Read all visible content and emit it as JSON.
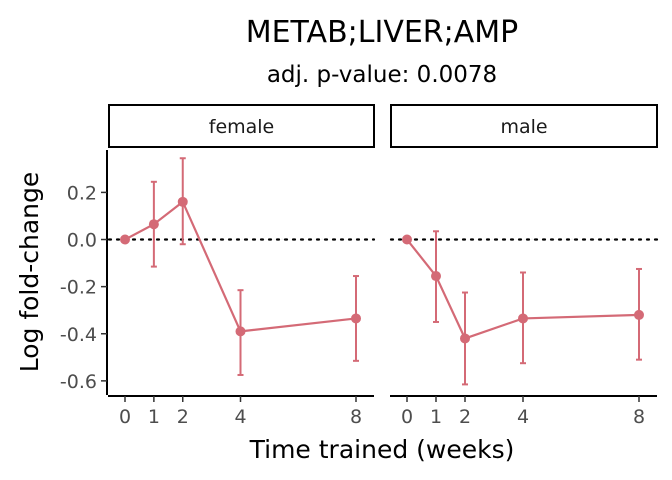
{
  "chart_data": {
    "type": "line",
    "title": "METAB;LIVER;AMP",
    "subtitle": "adj. p-value: 0.0078",
    "xlabel": "Time trained (weeks)",
    "ylabel": "Log fold-change",
    "x_ticks": [
      0,
      1,
      2,
      4,
      8
    ],
    "x_tick_labels": [
      "0",
      "1",
      "2",
      "4",
      "8"
    ],
    "y_ticks": [
      0.2,
      0.0,
      -0.2,
      -0.4,
      -0.6
    ],
    "y_tick_labels": [
      "0.2",
      "0.0",
      "-0.2",
      "-0.4",
      "-0.6"
    ],
    "xlim": [
      -0.4,
      8.4
    ],
    "ylim": [
      -0.66,
      0.38
    ],
    "grid": false,
    "reference_line": 0,
    "series_color": "#d46a76",
    "panels": [
      {
        "name": "female",
        "x": [
          0,
          1,
          2,
          4,
          8
        ],
        "y": [
          0.0,
          0.065,
          0.16,
          -0.39,
          -0.335
        ],
        "err_low": [
          0.0,
          -0.115,
          -0.02,
          -0.575,
          -0.515
        ],
        "err_high": [
          0.0,
          0.245,
          0.345,
          -0.215,
          -0.155
        ]
      },
      {
        "name": "male",
        "x": [
          0,
          1,
          2,
          4,
          8
        ],
        "y": [
          0.0,
          -0.155,
          -0.42,
          -0.335,
          -0.32
        ],
        "err_low": [
          0.0,
          -0.35,
          -0.615,
          -0.525,
          -0.51
        ],
        "err_high": [
          0.0,
          0.035,
          -0.225,
          -0.14,
          -0.125
        ]
      }
    ]
  }
}
